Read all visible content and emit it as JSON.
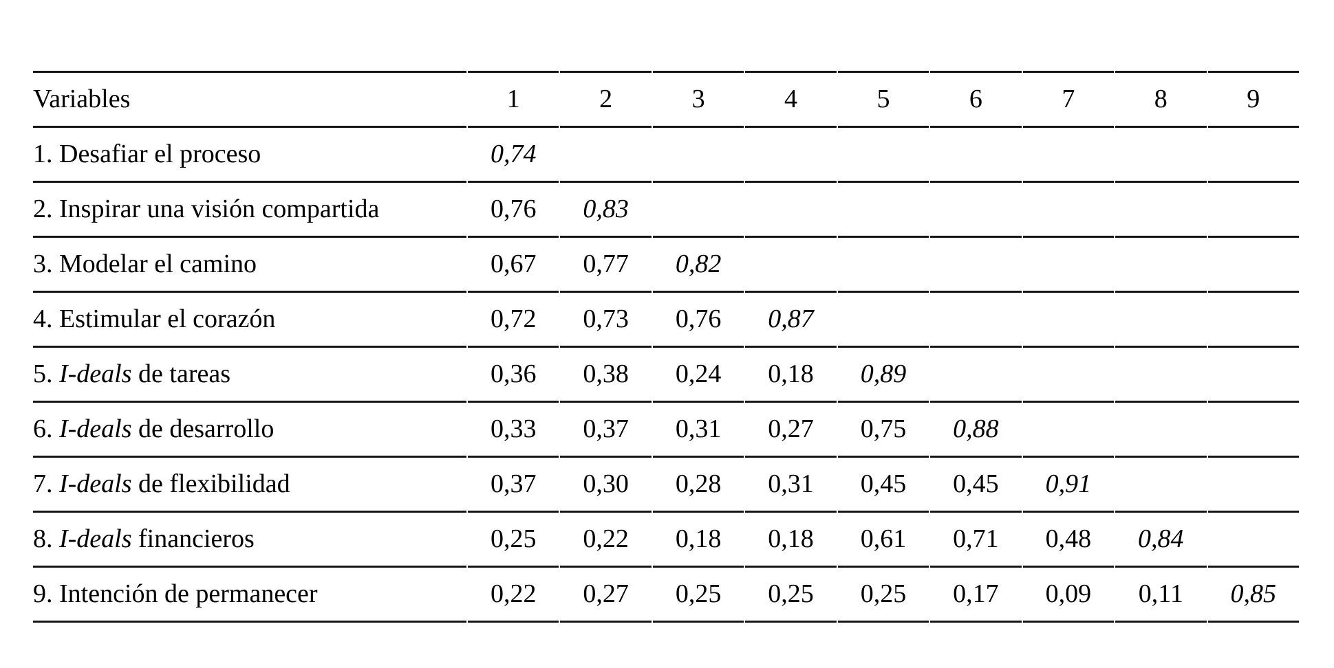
{
  "table": {
    "header": {
      "variables_label": "Variables",
      "columns": [
        "1",
        "2",
        "3",
        "4",
        "5",
        "6",
        "7",
        "8",
        "9"
      ]
    },
    "rows": [
      {
        "label": {
          "pre": "1. Desafiar el proceso",
          "italic": "",
          "post": ""
        },
        "values": [
          "0,74"
        ]
      },
      {
        "label": {
          "pre": "2. Inspirar una visión compartida",
          "italic": "",
          "post": ""
        },
        "values": [
          "0,76",
          "0,83"
        ]
      },
      {
        "label": {
          "pre": "3. Modelar el camino",
          "italic": "",
          "post": ""
        },
        "values": [
          "0,67",
          "0,77",
          "0,82"
        ]
      },
      {
        "label": {
          "pre": "4. Estimular el corazón",
          "italic": "",
          "post": ""
        },
        "values": [
          "0,72",
          "0,73",
          "0,76",
          "0,87"
        ]
      },
      {
        "label": {
          "pre": "5. ",
          "italic": "I-deals",
          "post": " de tareas"
        },
        "values": [
          "0,36",
          "0,38",
          "0,24",
          "0,18",
          "0,89"
        ]
      },
      {
        "label": {
          "pre": "6. ",
          "italic": "I-deals",
          "post": " de desarrollo"
        },
        "values": [
          "0,33",
          "0,37",
          "0,31",
          "0,27",
          "0,75",
          "0,88"
        ]
      },
      {
        "label": {
          "pre": "7. ",
          "italic": "I-deals",
          "post": " de flexibilidad"
        },
        "values": [
          "0,37",
          "0,30",
          "0,28",
          "0,31",
          "0,45",
          "0,45",
          "0,91"
        ]
      },
      {
        "label": {
          "pre": "8. ",
          "italic": "I-deals",
          "post": " financieros"
        },
        "values": [
          "0,25",
          "0,22",
          "0,18",
          "0,18",
          "0,61",
          "0,71",
          "0,48",
          "0,84"
        ]
      },
      {
        "label": {
          "pre": "9. Intención de permanecer",
          "italic": "",
          "post": ""
        },
        "values": [
          "0,22",
          "0,27",
          "0,25",
          "0,25",
          "0,25",
          "0,17",
          "0,09",
          "0,11",
          "0,85"
        ]
      }
    ],
    "diagonal_style": "italic"
  },
  "colors": {
    "text": "#000000",
    "rule": "#141414",
    "background": "#ffffff"
  }
}
